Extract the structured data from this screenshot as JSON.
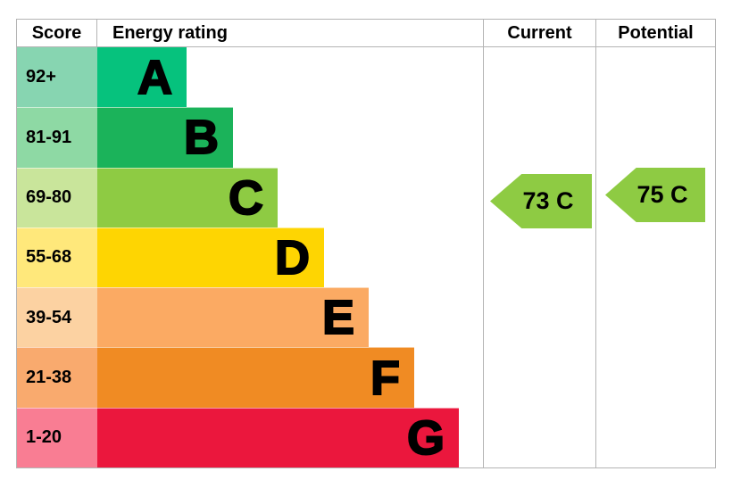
{
  "chart_data": {
    "type": "bar",
    "subtype": "epc-energy-rating",
    "title": "Energy rating",
    "columns": [
      "Score",
      "Energy rating",
      "Current",
      "Potential"
    ],
    "bands": [
      {
        "score": "92+",
        "letter": "A",
        "bar_color": "#06c27d",
        "score_bg": "#87d5b1"
      },
      {
        "score": "81-91",
        "letter": "B",
        "bar_color": "#1bb35a",
        "score_bg": "#8ed9a4"
      },
      {
        "score": "69-80",
        "letter": "C",
        "bar_color": "#8ecb43",
        "score_bg": "#c9e59b"
      },
      {
        "score": "55-68",
        "letter": "D",
        "bar_color": "#fed502",
        "score_bg": "#ffe87b"
      },
      {
        "score": "39-54",
        "letter": "E",
        "bar_color": "#fbaa63",
        "score_bg": "#fcd2a2"
      },
      {
        "score": "21-38",
        "letter": "F",
        "bar_color": "#f08b23",
        "score_bg": "#f9aa6e"
      },
      {
        "score": "1-20",
        "letter": "G",
        "bar_color": "#eb173d",
        "score_bg": "#f97d93"
      }
    ],
    "current": {
      "label": "73 C",
      "value": 73,
      "band": "C",
      "arrow_color": "#8ecb43"
    },
    "potential": {
      "label": "75 C",
      "value": 75,
      "band": "C",
      "arrow_color": "#8ecb43"
    }
  }
}
